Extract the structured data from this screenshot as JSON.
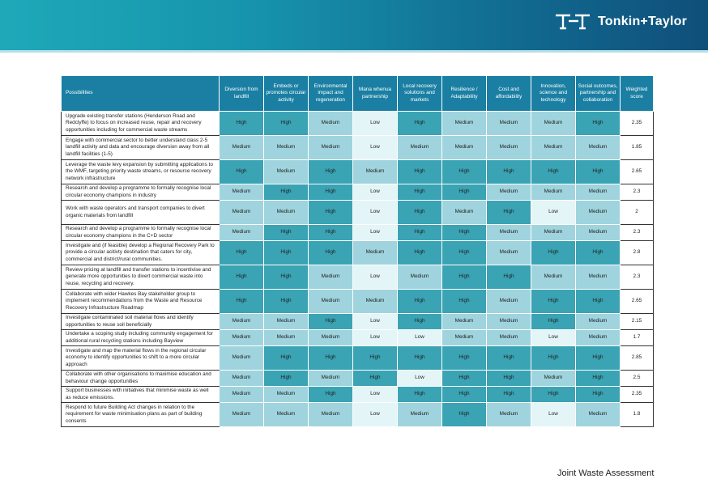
{
  "brand": {
    "name": "Tonkin+Taylor",
    "colors": {
      "header": "#1a7fa3",
      "high": "#3aa3b4",
      "medium": "#9fd4de",
      "low": "#e4f5f8"
    }
  },
  "table": {
    "headers": [
      "Possibilities",
      "Diversion from landfill",
      "Embeds or promotes circular activity",
      "Environmental impact and regeneration",
      "Mana whenua partnership",
      "Local recovery solutions and markets",
      "Resilience / Adaptability",
      "Cost and affordability",
      "Innovation, science and technology",
      "Social outcomes, partnership and collaboration",
      "Weighted score"
    ],
    "rows": [
      {
        "text": "Upgrade existing transfer stations (Henderson Road and Redclyffe) to focus on increased reuse, repair and recovery opportunities including for commercial waste streams",
        "ratings": [
          "High",
          "High",
          "Medium",
          "Low",
          "High",
          "Medium",
          "Medium",
          "Medium",
          "High"
        ],
        "score": "2.35"
      },
      {
        "text": "Engage with commercial sector to better understand class 2-5 landfill activity and data and encourage diversion away from all landfill facilities (1-5)",
        "ratings": [
          "Medium",
          "Medium",
          "Medium",
          "Low",
          "Medium",
          "Medium",
          "Medium",
          "Medium",
          "Medium"
        ],
        "score": "1.85"
      },
      {
        "text": "Leverage the waste levy expansion by submitting applications to the WMF, targeting priority waste streams, or resource recovery network infrastructure",
        "ratings": [
          "High",
          "Medium",
          "High",
          "Medium",
          "High",
          "High",
          "High",
          "High",
          "High"
        ],
        "score": "2.65"
      },
      {
        "text": "Research and develop a programme to formally recognise local circular economy champions in industry",
        "ratings": [
          "Medium",
          "High",
          "High",
          "Low",
          "High",
          "High",
          "Medium",
          "Medium",
          "Medium"
        ],
        "score": "2.3"
      },
      {
        "text": "Work with waste operators and transport companies to divert organic materials from landfill",
        "ratings": [
          "Medium",
          "Medium",
          "High",
          "Low",
          "High",
          "Medium",
          "High",
          "Low",
          "Medium"
        ],
        "score": "2"
      },
      {
        "text": "Research and develop a programme to formally recognise local circular economy champions in the C+D sector",
        "ratings": [
          "Medium",
          "High",
          "High",
          "Low",
          "High",
          "High",
          "Medium",
          "Medium",
          "Medium"
        ],
        "score": "2.3"
      },
      {
        "text": "Investigate and (if feasible) develop a Regional Recovery Park to provide a circular acitivty destination that caters for city, commercial and district/rural communities.",
        "ratings": [
          "High",
          "High",
          "High",
          "Medium",
          "High",
          "High",
          "Medium",
          "High",
          "High"
        ],
        "score": "2.8"
      },
      {
        "text": "Review pricing at landfill and transfer stations to incentivise and generate more opportunities to divert commercial waste into reuse, recycling and recovery.",
        "ratings": [
          "High",
          "High",
          "Medium",
          "Low",
          "Medium",
          "High",
          "High",
          "Medium",
          "Medium"
        ],
        "score": "2.3"
      },
      {
        "text": "Collaborate with wider Hawkes Bay stakeholder group to implement recommendations from the Waste and Resource Recovery Infrastructure Roadmap",
        "ratings": [
          "High",
          "High",
          "Medium",
          "Medium",
          "High",
          "High",
          "Medium",
          "High",
          "High"
        ],
        "score": "2.65"
      },
      {
        "text": "Investigate contaminated soil material flows and identify opportunities to reuse soil beneficially",
        "ratings": [
          "Medium",
          "Medium",
          "High",
          "Low",
          "High",
          "Medium",
          "Medium",
          "High",
          "Medium"
        ],
        "score": "2.15"
      },
      {
        "text": "Undertake a scoping study including community engagement for additional rural recycling stations including Bayview",
        "ratings": [
          "Medium",
          "Medium",
          "Medium",
          "Low",
          "Low",
          "Medium",
          "Medium",
          "Low",
          "Medium"
        ],
        "score": "1.7"
      },
      {
        "text": "Investigate and map the material flows in the regional circular economy to identify opportunities to shift to a more circular approach",
        "ratings": [
          "Medium",
          "High",
          "High",
          "High",
          "High",
          "High",
          "High",
          "High",
          "High"
        ],
        "score": "2.85"
      },
      {
        "text": "Collaborate with other organisations to maximise education and behaviour change opportunities",
        "ratings": [
          "Medium",
          "High",
          "Medium",
          "High",
          "Low",
          "High",
          "High",
          "Medium",
          "High"
        ],
        "score": "2.5"
      },
      {
        "text": "Support businesses with initiatives that minimise waste as well as reduce emissions.",
        "ratings": [
          "Medium",
          "Medium",
          "High",
          "Low",
          "High",
          "High",
          "High",
          "High",
          "High"
        ],
        "score": "2.35"
      },
      {
        "text": "Respond to future Building Act changes in relation to the requirement for waste minimisation plans as part of building consents",
        "ratings": [
          "Medium",
          "Medium",
          "Medium",
          "Low",
          "Medium",
          "High",
          "Medium",
          "Low",
          "Medium"
        ],
        "score": "1.8"
      }
    ]
  },
  "footer": {
    "text": "Joint Waste Assessment"
  }
}
